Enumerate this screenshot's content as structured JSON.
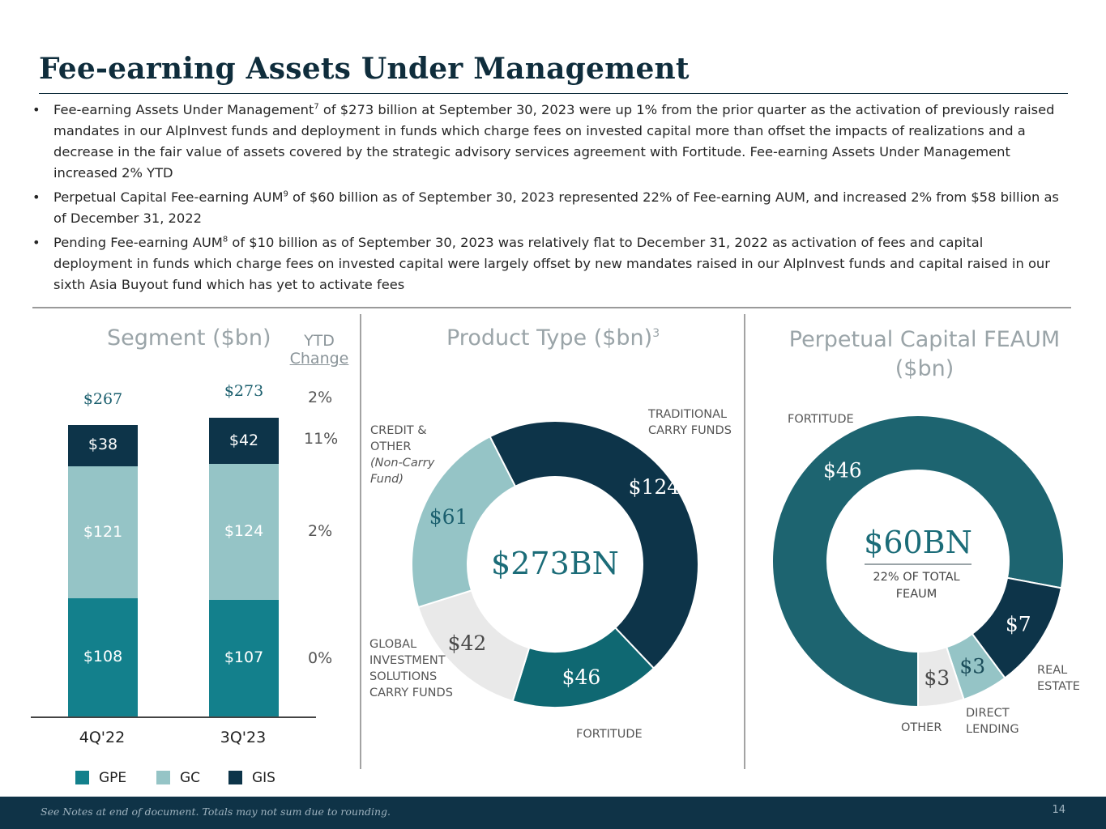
{
  "title": "Fee-earning Assets Under Management",
  "bullets": [
    {
      "pre": "Fee-earning Assets Under Management",
      "sup": "7",
      "post": " of $273 billion at September 30, 2023 were up 1% from the prior quarter as the activation of previously raised mandates in our AlpInvest funds and deployment in funds which charge fees on invested capital more than offset the impacts of realizations and a decrease in the fair value of assets covered by the strategic advisory services agreement with Fortitude. Fee-earning Assets Under Management increased 2% YTD"
    },
    {
      "pre": "Perpetual Capital Fee-earning AUM",
      "sup": "9",
      "post": " of $60 billion as of September 30, 2023 represented 22% of Fee-earning AUM, and increased 2% from $58 billion as of December 31, 2022"
    },
    {
      "pre": "Pending Fee-earning AUM",
      "sup": "8",
      "post": " of $10 billion as of September 30, 2023 was relatively flat to December 31, 2022 as activation of fees and capital deployment in funds which charge fees on invested capital were largely offset by new mandates raised in our AlpInvest funds and capital raised in our sixth Asia Buyout fund which has yet to activate fees"
    }
  ],
  "colors": {
    "gpe": "#13808c",
    "gc": "#95c4c6",
    "gis": "#0d3449",
    "fortitude": "#0f6872",
    "other": "#e9e9e9",
    "perp_fortitude": "#1d6470"
  },
  "chart_data": [
    {
      "type": "bar",
      "stacked": true,
      "title": "Segment ($bn)",
      "ytd_header": [
        "YTD",
        "Change"
      ],
      "categories": [
        "4Q'22",
        "3Q'23"
      ],
      "series": [
        {
          "name": "GPE",
          "values": [
            108,
            107
          ],
          "labels": [
            "$108",
            "$107"
          ],
          "ytd_change": "0%"
        },
        {
          "name": "GC",
          "values": [
            121,
            124
          ],
          "labels": [
            "$121",
            "$124"
          ],
          "ytd_change": "2%"
        },
        {
          "name": "GIS",
          "values": [
            38,
            42
          ],
          "labels": [
            "$38",
            "$42"
          ],
          "ytd_change": "11%"
        }
      ],
      "totals": [
        "$267",
        "$273"
      ],
      "total_ytd_change": "2%",
      "legend": [
        "GPE",
        "GC",
        "GIS"
      ]
    },
    {
      "type": "pie",
      "donut": true,
      "title": "Product Type ($bn)",
      "title_sup": "3",
      "center_label": "$273BN",
      "slices": [
        {
          "name": "TRADITIONAL\nCARRY FUNDS",
          "value": 124,
          "label": "$124"
        },
        {
          "name": "FORTITUDE",
          "value": 46,
          "label": "$46"
        },
        {
          "name": "GLOBAL\nINVESTMENT\nSOLUTIONS\nCARRY FUNDS",
          "value": 42,
          "label": "$42"
        },
        {
          "name": "CREDIT &\nOTHER",
          "note": "(Non-Carry\nFund)",
          "value": 61,
          "label": "$61"
        }
      ]
    },
    {
      "type": "pie",
      "donut": true,
      "title": "Perpetual Capital FEAUM ($bn)",
      "center_label": "$60BN",
      "center_sub": "22% OF TOTAL\nFEAUM",
      "slices": [
        {
          "name": "FORTITUDE",
          "value": 46,
          "label": "$46"
        },
        {
          "name": "REAL\nESTATE",
          "value": 7,
          "label": "$7"
        },
        {
          "name": "DIRECT\nLENDING",
          "value": 3,
          "label": "$3"
        },
        {
          "name": "OTHER",
          "value": 3,
          "label": "$3"
        }
      ]
    }
  ],
  "footer": {
    "note": "See Notes at end of document. Totals may not sum due to rounding.",
    "page": "14"
  }
}
